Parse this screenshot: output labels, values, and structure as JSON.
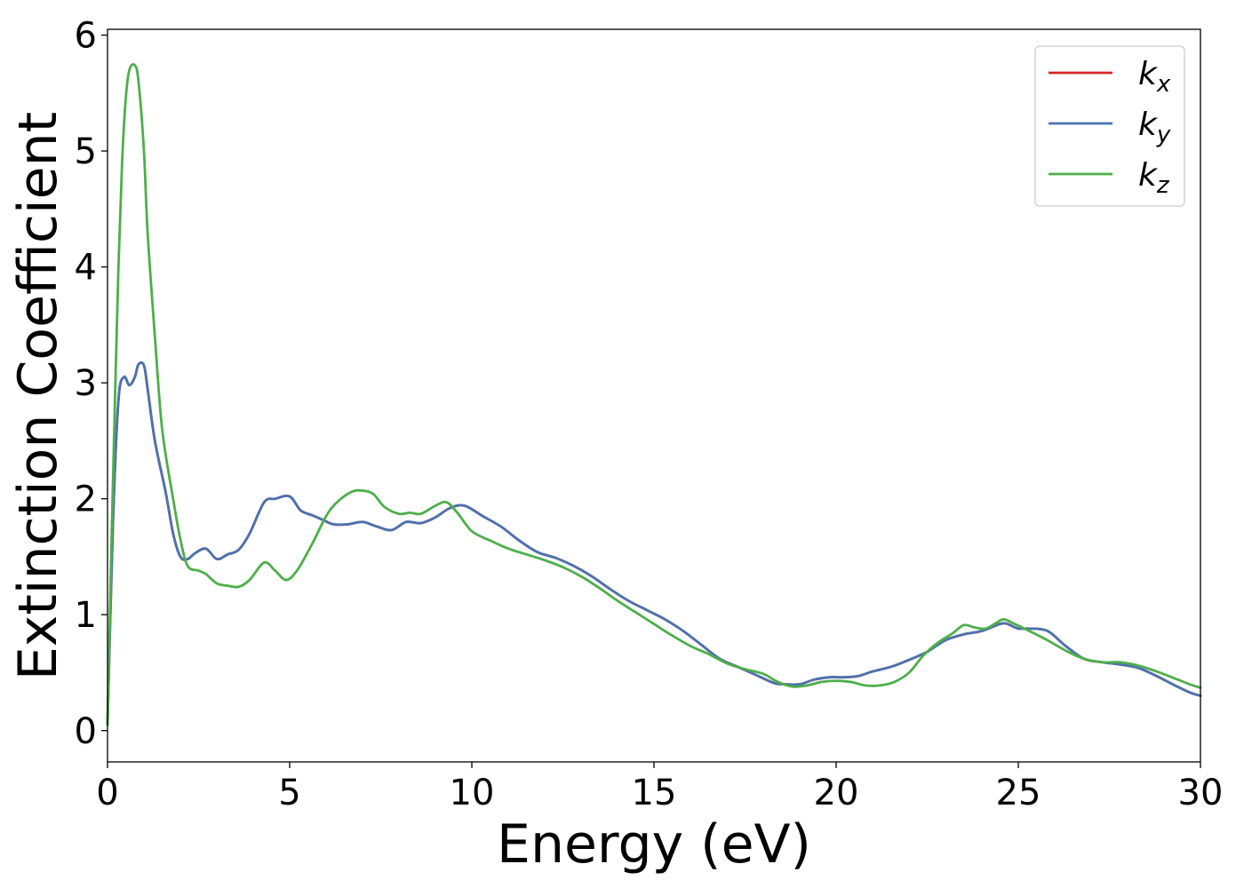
{
  "chart_data": {
    "type": "line",
    "title": "",
    "xlabel": "Energy (eV)",
    "ylabel": "Extinction Coefficient",
    "xlim": [
      0,
      30
    ],
    "ylim": [
      -0.27,
      6.05
    ],
    "xticks": [
      0,
      5,
      10,
      15,
      20,
      25,
      30
    ],
    "yticks": [
      0,
      1,
      2,
      3,
      4,
      5,
      6
    ],
    "grid": false,
    "legend_position": "top-right",
    "series": [
      {
        "name": "k",
        "subscript": "x",
        "color": "#d62728",
        "x": [
          0,
          0.15,
          0.3,
          0.45,
          0.6,
          0.75,
          0.85,
          1.0,
          1.1,
          1.3,
          1.6,
          1.8,
          2.0,
          2.2,
          2.4,
          2.7,
          3.0,
          3.3,
          3.6,
          3.9,
          4.3,
          4.6,
          5.0,
          5.3,
          5.6,
          5.9,
          6.2,
          6.6,
          7.0,
          7.4,
          7.8,
          8.2,
          8.6,
          9.0,
          9.4,
          9.8,
          10.3,
          10.8,
          11.3,
          11.8,
          12.3,
          12.8,
          13.3,
          13.8,
          14.3,
          14.8,
          15.3,
          15.8,
          16.3,
          16.8,
          17.3,
          17.8,
          18.3,
          18.6,
          19.0,
          19.4,
          19.8,
          20.2,
          20.6,
          21.0,
          21.5,
          22.0,
          22.5,
          23.0,
          23.5,
          24.0,
          24.5,
          24.7,
          25.0,
          25.3,
          25.8,
          26.3,
          26.8,
          27.3,
          27.8,
          28.3,
          28.8,
          29.3,
          29.7,
          30.0
        ],
        "values": [
          0.05,
          1.8,
          2.85,
          3.05,
          2.98,
          3.05,
          3.16,
          3.15,
          2.95,
          2.5,
          2.05,
          1.7,
          1.5,
          1.48,
          1.53,
          1.57,
          1.48,
          1.52,
          1.56,
          1.7,
          1.97,
          2.0,
          2.02,
          1.9,
          1.86,
          1.82,
          1.78,
          1.78,
          1.8,
          1.76,
          1.73,
          1.8,
          1.79,
          1.84,
          1.92,
          1.94,
          1.85,
          1.76,
          1.64,
          1.54,
          1.49,
          1.42,
          1.33,
          1.22,
          1.12,
          1.04,
          0.96,
          0.86,
          0.74,
          0.62,
          0.55,
          0.48,
          0.41,
          0.4,
          0.4,
          0.44,
          0.46,
          0.46,
          0.47,
          0.51,
          0.55,
          0.61,
          0.68,
          0.78,
          0.83,
          0.86,
          0.92,
          0.92,
          0.88,
          0.88,
          0.86,
          0.73,
          0.62,
          0.59,
          0.57,
          0.54,
          0.47,
          0.39,
          0.33,
          0.3
        ]
      },
      {
        "name": "k",
        "subscript": "y",
        "color": "#4a73b0",
        "x": [
          0,
          0.15,
          0.3,
          0.45,
          0.6,
          0.75,
          0.85,
          1.0,
          1.1,
          1.3,
          1.6,
          1.8,
          2.0,
          2.2,
          2.4,
          2.7,
          3.0,
          3.3,
          3.6,
          3.9,
          4.3,
          4.6,
          5.0,
          5.3,
          5.6,
          5.9,
          6.2,
          6.6,
          7.0,
          7.4,
          7.8,
          8.2,
          8.6,
          9.0,
          9.4,
          9.8,
          10.3,
          10.8,
          11.3,
          11.8,
          12.3,
          12.8,
          13.3,
          13.8,
          14.3,
          14.8,
          15.3,
          15.8,
          16.3,
          16.8,
          17.3,
          17.8,
          18.3,
          18.6,
          19.0,
          19.4,
          19.8,
          20.2,
          20.6,
          21.0,
          21.5,
          22.0,
          22.5,
          23.0,
          23.5,
          24.0,
          24.5,
          24.7,
          25.0,
          25.3,
          25.8,
          26.3,
          26.8,
          27.3,
          27.8,
          28.3,
          28.8,
          29.3,
          29.7,
          30.0
        ],
        "values": [
          0.05,
          1.8,
          2.85,
          3.05,
          2.98,
          3.05,
          3.16,
          3.15,
          2.95,
          2.5,
          2.05,
          1.7,
          1.5,
          1.48,
          1.53,
          1.57,
          1.48,
          1.52,
          1.56,
          1.7,
          1.97,
          2.0,
          2.02,
          1.9,
          1.86,
          1.82,
          1.78,
          1.78,
          1.8,
          1.76,
          1.73,
          1.8,
          1.79,
          1.84,
          1.92,
          1.94,
          1.85,
          1.76,
          1.64,
          1.54,
          1.49,
          1.42,
          1.33,
          1.22,
          1.12,
          1.04,
          0.96,
          0.86,
          0.74,
          0.62,
          0.55,
          0.48,
          0.41,
          0.4,
          0.4,
          0.44,
          0.46,
          0.46,
          0.47,
          0.51,
          0.55,
          0.61,
          0.68,
          0.78,
          0.83,
          0.86,
          0.92,
          0.92,
          0.88,
          0.88,
          0.86,
          0.73,
          0.62,
          0.59,
          0.57,
          0.54,
          0.47,
          0.39,
          0.33,
          0.3
        ]
      },
      {
        "name": "k",
        "subscript": "z",
        "color": "#4daf4a",
        "x": [
          0,
          0.1,
          0.2,
          0.3,
          0.4,
          0.5,
          0.6,
          0.75,
          0.85,
          1.0,
          1.1,
          1.3,
          1.5,
          1.8,
          2.0,
          2.2,
          2.5,
          2.7,
          3.0,
          3.3,
          3.6,
          3.9,
          4.3,
          4.6,
          4.9,
          5.2,
          5.6,
          6.0,
          6.3,
          6.7,
          7.0,
          7.3,
          7.6,
          8.0,
          8.3,
          8.6,
          9.0,
          9.3,
          9.6,
          10.0,
          10.5,
          11.0,
          11.5,
          12.0,
          12.5,
          13.0,
          13.5,
          14.0,
          14.5,
          15.0,
          15.5,
          16.0,
          16.5,
          17.0,
          17.5,
          18.0,
          18.4,
          18.8,
          19.2,
          19.6,
          20.0,
          20.4,
          20.8,
          21.2,
          21.6,
          22.0,
          22.4,
          22.8,
          23.2,
          23.5,
          23.8,
          24.1,
          24.4,
          24.6,
          24.9,
          25.3,
          25.8,
          26.3,
          26.8,
          27.3,
          27.8,
          28.3,
          28.8,
          29.3,
          29.7,
          30.0
        ],
        "values": [
          0.05,
          1.5,
          2.8,
          4.0,
          4.9,
          5.45,
          5.7,
          5.74,
          5.6,
          5.0,
          4.3,
          3.4,
          2.6,
          2.0,
          1.65,
          1.42,
          1.38,
          1.35,
          1.27,
          1.25,
          1.24,
          1.3,
          1.45,
          1.38,
          1.3,
          1.38,
          1.6,
          1.85,
          1.97,
          2.06,
          2.07,
          2.04,
          1.93,
          1.87,
          1.88,
          1.87,
          1.94,
          1.97,
          1.88,
          1.72,
          1.64,
          1.57,
          1.52,
          1.47,
          1.41,
          1.33,
          1.23,
          1.12,
          1.02,
          0.92,
          0.82,
          0.73,
          0.66,
          0.58,
          0.53,
          0.49,
          0.42,
          0.38,
          0.39,
          0.42,
          0.43,
          0.42,
          0.39,
          0.39,
          0.42,
          0.5,
          0.65,
          0.76,
          0.84,
          0.91,
          0.89,
          0.88,
          0.93,
          0.96,
          0.92,
          0.86,
          0.78,
          0.69,
          0.62,
          0.59,
          0.59,
          0.56,
          0.51,
          0.45,
          0.4,
          0.37
        ]
      }
    ]
  }
}
